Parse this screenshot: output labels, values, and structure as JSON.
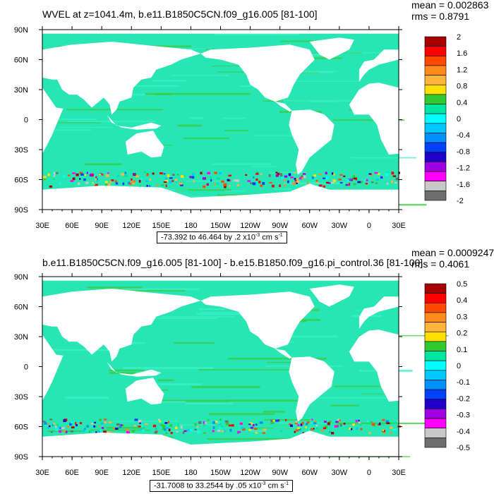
{
  "chart_data": [
    {
      "type": "heatmap",
      "title": "WVEL at z=1041.4m, b.e11.B1850C5CN.f09_g16.005 [81-100]",
      "stats": {
        "mean": "mean = 0.002863",
        "rms": "rms = 0.8791"
      },
      "range_text": {
        "pre": "-73.392 to 46.464 by .2 x10",
        "exp": "-3",
        "unit": " cm s",
        "unit_exp": "-1"
      },
      "x_ticks": [
        "30E",
        "60E",
        "90E",
        "120E",
        "150E",
        "180",
        "150W",
        "120W",
        "90W",
        "60W",
        "30W",
        "0",
        "30E"
      ],
      "y_ticks": [
        "90N",
        "60N",
        "30N",
        "0",
        "30S",
        "60S",
        "90S"
      ],
      "colorbar": {
        "labels": [
          "2",
          "1.6",
          "1.2",
          "0.8",
          "0.4",
          "0",
          "-0.4",
          "-0.8",
          "-1.2",
          "-1.6",
          "-2"
        ],
        "colors": [
          "#a80000",
          "#ff0000",
          "#ff4a00",
          "#ff8c1a",
          "#ffb43a",
          "#ffe000",
          "#32c832",
          "#00e6a0",
          "#00ffff",
          "#00c8ff",
          "#0090ff",
          "#0040ff",
          "#2000c8",
          "#a000e0",
          "#ff00ff",
          "#c8c8c8",
          "#6e6e6e"
        ]
      }
    },
    {
      "type": "heatmap",
      "title": "b.e11.B1850C5CN.f09_g16.005 [81-100] - b.e15.B1850.f09_g16.pi_control.36 [81-100]",
      "stats": {
        "mean": "mean = 0.0009247",
        "rms": "rms = 0.4061"
      },
      "range_text": {
        "pre": "-31.7008 to 33.2544 by .05 x10",
        "exp": "-3",
        "unit": " cm s",
        "unit_exp": "-1"
      },
      "x_ticks": [
        "30E",
        "60E",
        "90E",
        "120E",
        "150E",
        "180",
        "150W",
        "120W",
        "90W",
        "60W",
        "30W",
        "0",
        "30E"
      ],
      "y_ticks": [
        "90N",
        "60N",
        "30N",
        "0",
        "30S",
        "60S",
        "90S"
      ],
      "colorbar": {
        "labels": [
          "0.5",
          "0.4",
          "0.3",
          "0.2",
          "0.1",
          "0",
          "-0.1",
          "-0.2",
          "-0.3",
          "-0.4",
          "-0.5"
        ],
        "colors": [
          "#a80000",
          "#ff0000",
          "#ff4a00",
          "#ff8c1a",
          "#ffb43a",
          "#ffe000",
          "#32c832",
          "#00e6a0",
          "#00ffff",
          "#00c8ff",
          "#0090ff",
          "#0040ff",
          "#2000c8",
          "#a000e0",
          "#ff00ff",
          "#c8c8c8",
          "#6e6e6e"
        ]
      }
    }
  ],
  "colors": {
    "ocean_base": "#28e6b4",
    "ocean_light": "#3cf0c8",
    "ocean_green": "#3cc83c",
    "land": "#ffffff"
  }
}
